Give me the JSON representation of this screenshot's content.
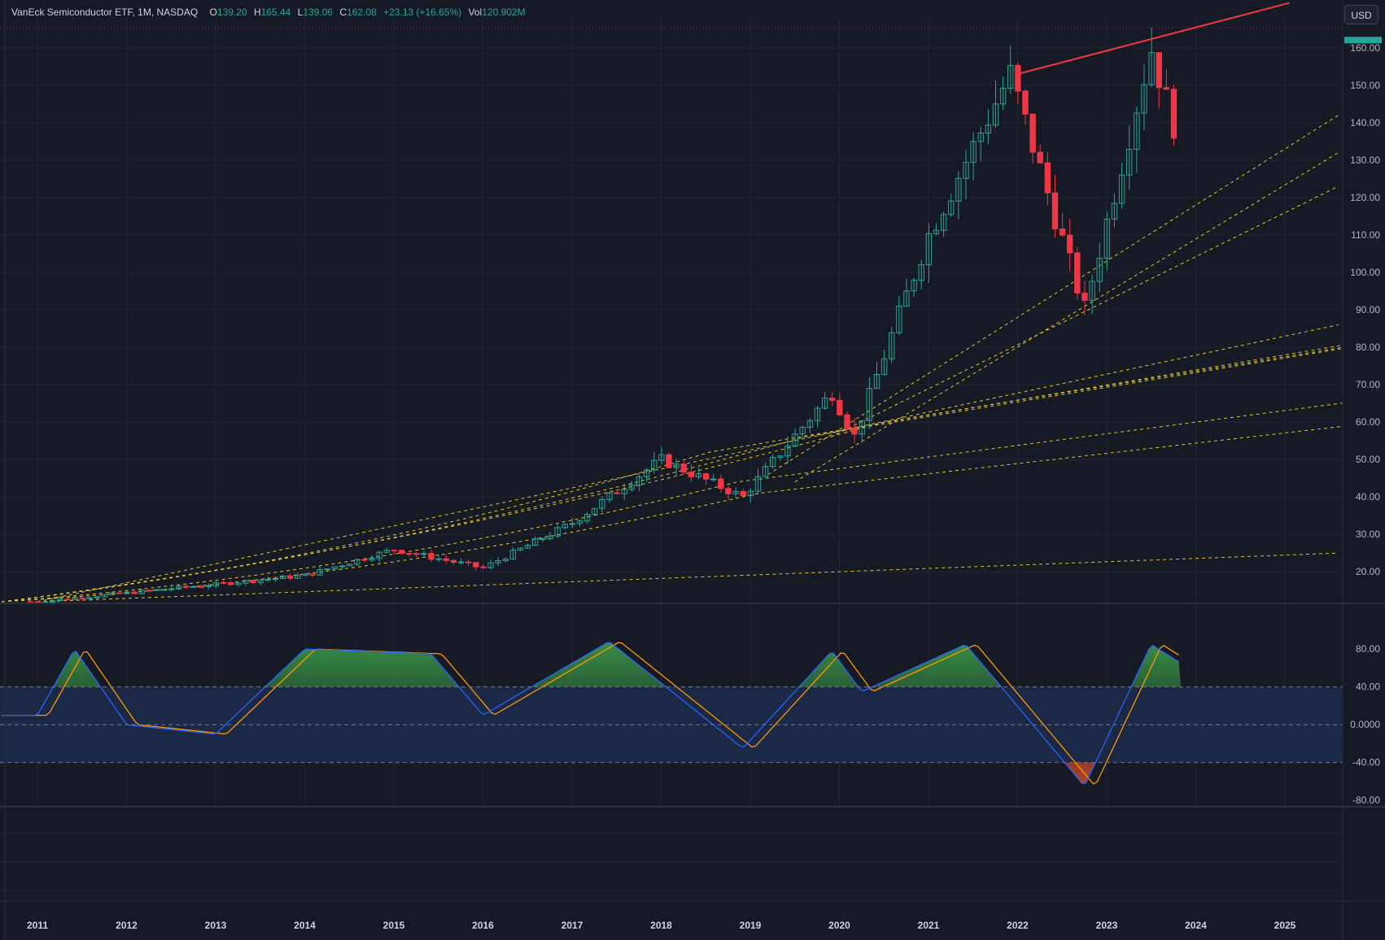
{
  "legend": {
    "title": "VanEck Semiconductor ETF, 1M, NASDAQ",
    "open_label": "O",
    "open": "139.20",
    "high_label": "H",
    "high": "165.44",
    "low_label": "L",
    "low": "139.06",
    "close_label": "C",
    "close": "162.08",
    "change": "+23.13 (+16.65%)",
    "vol_label": "Vol",
    "vol": "120.902M"
  },
  "currency_button": "USD",
  "price_axis": {
    "ticks": [
      "160.00",
      "150.00",
      "140.00",
      "130.00",
      "120.00",
      "110.00",
      "100.00",
      "90.00",
      "80.00",
      "70.00",
      "60.00",
      "50.00",
      "40.00",
      "30.00",
      "20.00"
    ],
    "current_price_marker": "162.08"
  },
  "oscillator_axis": {
    "ticks": [
      "80.00",
      "40.00",
      "0.0000",
      "-40.00",
      "-80.00"
    ]
  },
  "time_axis": {
    "labels": [
      "2011",
      "2012",
      "2013",
      "2014",
      "2015",
      "2016",
      "2017",
      "2018",
      "2019",
      "2020",
      "2021",
      "2022",
      "2023",
      "2024",
      "2025"
    ]
  },
  "colors": {
    "up": "#26a69a",
    "down": "#f23645",
    "trendline": "#f23645",
    "fan_lines": "#e2c531",
    "osc_fast": "#2962ff",
    "osc_slow": "#ff9800",
    "osc_band": "#1c2a4a",
    "background": "#161a25",
    "grid": "#232735"
  },
  "chart_data": {
    "type": "candlestick",
    "symbol": "VanEck Semiconductor ETF",
    "interval": "1M",
    "exchange": "NASDAQ",
    "currency": "USD",
    "price_range": [
      12,
      168
    ],
    "oscillator_range": [
      -85,
      100
    ],
    "oscillator_levels": [
      40,
      0,
      -40
    ],
    "key_points": [
      {
        "date": "2011",
        "price": 12
      },
      {
        "date": "2014",
        "price": 19
      },
      {
        "date": "2015",
        "price": 26
      },
      {
        "date": "2016",
        "price": 21
      },
      {
        "date": "2017",
        "price": 33
      },
      {
        "date": "2018",
        "price": 50
      },
      {
        "date": "2018-12",
        "price": 40
      },
      {
        "date": "2019-12",
        "price": 68
      },
      {
        "date": "2020-03",
        "price": 56
      },
      {
        "date": "2021-01",
        "price": 110
      },
      {
        "date": "2021-12",
        "price": 153
      },
      {
        "date": "2022-10",
        "price": 90
      },
      {
        "date": "2023-07",
        "price": 160
      },
      {
        "date": "2023-10",
        "price": 139
      },
      {
        "date": "2023-11",
        "price": 162
      }
    ],
    "last_bar": {
      "open": 139.2,
      "high": 165.44,
      "low": 139.06,
      "close": 162.08,
      "volume": "120.902M"
    },
    "oscillator_key_points": [
      {
        "date": "2011",
        "value": 10
      },
      {
        "date": "2011-06",
        "value": 80
      },
      {
        "date": "2012-01",
        "value": 0
      },
      {
        "date": "2013",
        "value": -10
      },
      {
        "date": "2014",
        "value": 80
      },
      {
        "date": "2015-06",
        "value": 75
      },
      {
        "date": "2016",
        "value": 10
      },
      {
        "date": "2017-06",
        "value": 88
      },
      {
        "date": "2018-12",
        "value": -25
      },
      {
        "date": "2019-12",
        "value": 78
      },
      {
        "date": "2020-04",
        "value": 35
      },
      {
        "date": "2021-06",
        "value": 85
      },
      {
        "date": "2022-10",
        "value": -65
      },
      {
        "date": "2023-07",
        "value": 85
      },
      {
        "date": "2023-11",
        "value": 65
      }
    ]
  }
}
